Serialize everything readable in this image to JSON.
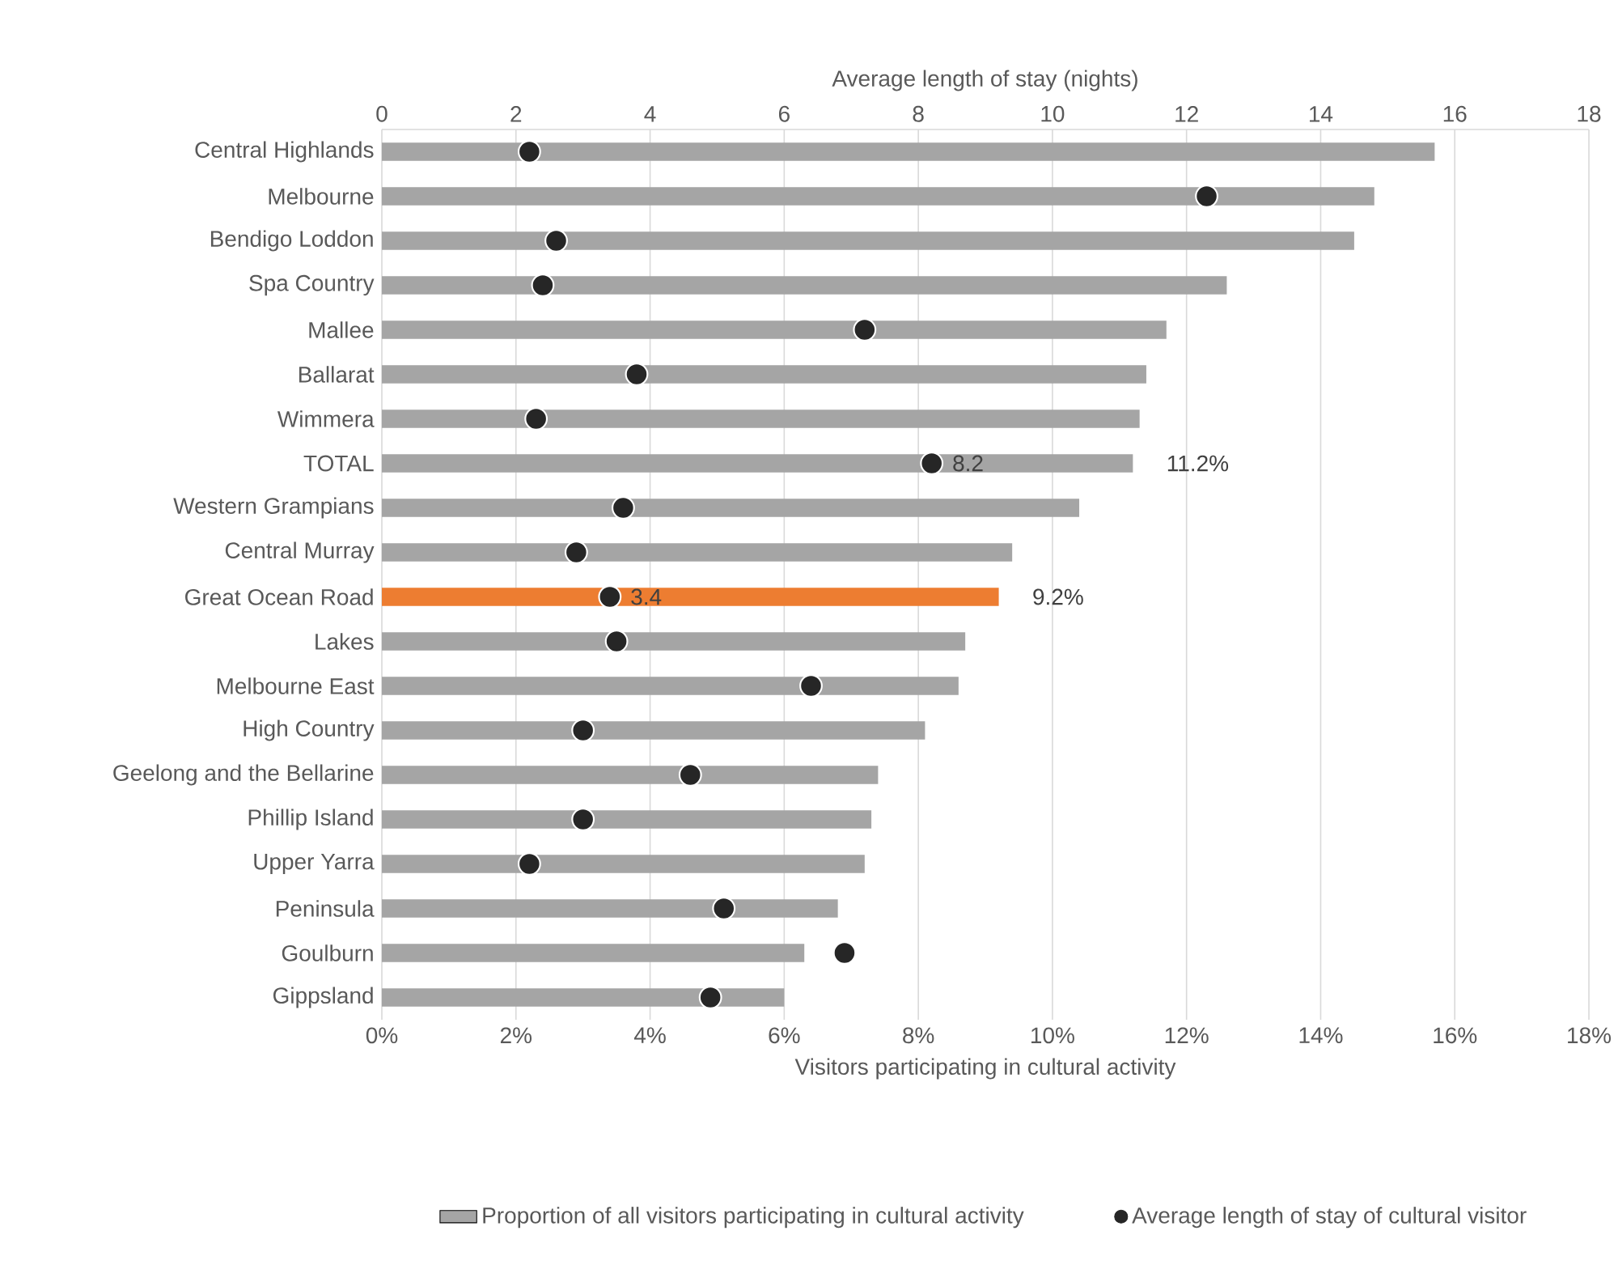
{
  "chart_data": {
    "type": "bar",
    "orientation": "horizontal",
    "categories": [
      "Central Highlands",
      "Melbourne",
      "Bendigo Loddon",
      "Spa Country",
      "Mallee",
      "Ballarat",
      "Wimmera",
      "TOTAL",
      "Western Grampians",
      "Central Murray",
      "Great Ocean Road",
      "Lakes",
      "Melbourne East",
      "High Country",
      "Geelong and the Bellarine",
      "Phillip Island",
      "Upper Yarra",
      "Peninsula",
      "Goulburn",
      "Gippsland"
    ],
    "xlabel": "Visitors participating in cultural activity",
    "x2label": "Average length of stay (nights)",
    "xlim": [
      0,
      18
    ],
    "xticks": [
      {
        "value": 0,
        "label": "0%"
      },
      {
        "value": 2,
        "label": "2%"
      },
      {
        "value": 4,
        "label": "4%"
      },
      {
        "value": 6,
        "label": "6%"
      },
      {
        "value": 8,
        "label": "8%"
      },
      {
        "value": 10,
        "label": "10%"
      },
      {
        "value": 12,
        "label": "12%"
      },
      {
        "value": 14,
        "label": "14%"
      },
      {
        "value": 16,
        "label": "16%"
      },
      {
        "value": 18,
        "label": "18%"
      }
    ],
    "x2lim": [
      0,
      18
    ],
    "x2ticks": [
      0,
      2,
      4,
      6,
      8,
      10,
      12,
      14,
      16,
      18
    ],
    "grid": "x",
    "legend": "bottom",
    "marker": "circle",
    "series": [
      {
        "name": "Proportion of all visitors participating in cultural activity",
        "colors": [
          "#a5a5a5",
          "#a5a5a5",
          "#a5a5a5",
          "#a5a5a5",
          "#a5a5a5",
          "#a5a5a5",
          "#a5a5a5",
          "#a5a5a5",
          "#a5a5a5",
          "#a5a5a5",
          "#ed7d31",
          "#a5a5a5",
          "#a5a5a5",
          "#a5a5a5",
          "#a5a5a5",
          "#a5a5a5",
          "#a5a5a5",
          "#a5a5a5",
          "#a5a5a5",
          "#a5a5a5"
        ],
        "values": [
          15.7,
          14.8,
          14.5,
          12.6,
          11.7,
          11.4,
          11.3,
          11.2,
          10.4,
          9.4,
          9.2,
          8.7,
          8.6,
          8.1,
          7.4,
          7.3,
          7.2,
          6.8,
          6.3,
          6.0
        ],
        "value_labels": [
          null,
          null,
          null,
          null,
          null,
          null,
          null,
          "11.2%",
          null,
          null,
          "9.2%",
          null,
          null,
          null,
          null,
          null,
          null,
          null,
          null,
          null
        ]
      },
      {
        "name": "Average length of stay of cultural visitor",
        "type": "scatter",
        "axis": "x2",
        "color": "#262626",
        "values": [
          2.2,
          12.3,
          2.6,
          2.4,
          7.2,
          3.8,
          2.3,
          8.2,
          3.6,
          2.9,
          3.4,
          3.5,
          6.4,
          3.0,
          4.6,
          3.0,
          2.2,
          5.1,
          6.9,
          4.9
        ],
        "value_labels": [
          null,
          null,
          null,
          null,
          null,
          null,
          null,
          "8.2",
          null,
          null,
          "3.4",
          null,
          null,
          null,
          null,
          null,
          null,
          null,
          null,
          null
        ]
      }
    ]
  }
}
